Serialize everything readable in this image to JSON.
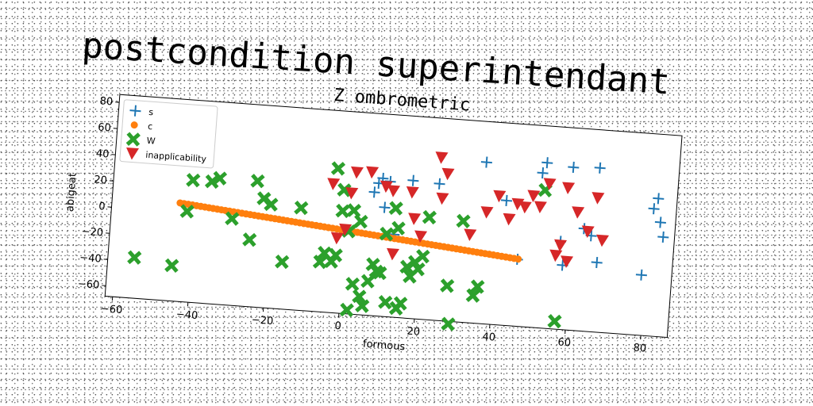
{
  "page": {
    "title": "postcondition superintendant"
  },
  "chart_data": {
    "type": "scatter",
    "title": "Z ombrometric",
    "xlabel": "formous",
    "ylabel": "abigeat",
    "xlim": [
      -62,
      87
    ],
    "ylim": [
      -68,
      86
    ],
    "xticks": [
      -60,
      -40,
      -20,
      0,
      20,
      40,
      60,
      80
    ],
    "yticks": [
      -60,
      -40,
      -20,
      0,
      20,
      40,
      60,
      80
    ],
    "legend_position": "top-left",
    "grid": false,
    "series": [
      {
        "name": "s",
        "marker": "plus",
        "color": "#1f77b4",
        "points": [
          [
            7,
            26
          ],
          [
            8,
            33
          ],
          [
            9,
            37
          ],
          [
            11,
            35
          ],
          [
            10,
            15
          ],
          [
            13,
            -5
          ],
          [
            17,
            37
          ],
          [
            24,
            36
          ],
          [
            36,
            55
          ],
          [
            42,
            27
          ],
          [
            46,
            -17
          ],
          [
            51,
            50
          ],
          [
            52,
            58
          ],
          [
            57,
            -1
          ],
          [
            58,
            -19
          ],
          [
            59,
            56
          ],
          [
            63,
            10
          ],
          [
            66,
            57
          ],
          [
            67,
            -15
          ],
          [
            79,
            -22
          ],
          [
            81,
            29
          ],
          [
            82,
            37
          ],
          [
            83,
            19
          ],
          [
            84,
            8
          ],
          [
            65,
            5
          ]
        ]
      },
      {
        "name": "c",
        "marker": "circle",
        "color": "#ff7f0e",
        "points": [
          [
            -44,
            7
          ],
          [
            -35,
            5
          ],
          [
            -25,
            3
          ],
          [
            -15,
            1
          ],
          [
            -5,
            -1
          ],
          [
            5,
            -4
          ],
          [
            15,
            -7
          ],
          [
            25,
            -10
          ],
          [
            35,
            -13
          ],
          [
            47,
            -17
          ]
        ]
      },
      {
        "name": "W",
        "marker": "x",
        "color": "#2ca02c",
        "points": [
          [
            -55,
            -37
          ],
          [
            -45,
            -41
          ],
          [
            -42,
            1
          ],
          [
            -41,
            25
          ],
          [
            -36,
            25
          ],
          [
            -34,
            28
          ],
          [
            -30,
            -2
          ],
          [
            -25,
            -17
          ],
          [
            -24,
            28
          ],
          [
            -22,
            15
          ],
          [
            -20,
            11
          ],
          [
            -16,
            -32
          ],
          [
            -12,
            10
          ],
          [
            -6,
            -30
          ],
          [
            -5,
            -23
          ],
          [
            -3,
            -29
          ],
          [
            -3,
            42
          ],
          [
            -2,
            -24
          ],
          [
            -1,
            26
          ],
          [
            -1,
            10
          ],
          [
            1,
            -5
          ],
          [
            2,
            11
          ],
          [
            2,
            -65
          ],
          [
            3,
            -45
          ],
          [
            4,
            3
          ],
          [
            5,
            -54
          ],
          [
            6,
            -61
          ],
          [
            7,
            -42
          ],
          [
            8,
            -29
          ],
          [
            9,
            -34
          ],
          [
            10,
            -35
          ],
          [
            11,
            -5
          ],
          [
            12,
            -57
          ],
          [
            13,
            15
          ],
          [
            14,
            0
          ],
          [
            15,
            -61
          ],
          [
            16,
            -57
          ],
          [
            17,
            -29
          ],
          [
            18,
            -36
          ],
          [
            19,
            -25
          ],
          [
            20,
            -30
          ],
          [
            21,
            -20
          ],
          [
            22,
            10
          ],
          [
            28,
            -41
          ],
          [
            29,
            -70
          ],
          [
            31,
            9
          ],
          [
            35,
            -47
          ],
          [
            36,
            -40
          ],
          [
            52,
            37
          ],
          [
            57,
            -62
          ]
        ]
      },
      {
        "name": "inapplicability",
        "marker": "triangle-down",
        "color": "#d62728",
        "points": [
          [
            -4,
            30
          ],
          [
            -2,
            -11
          ],
          [
            0,
            -4
          ],
          [
            1,
            24
          ],
          [
            2,
            40
          ],
          [
            6,
            41
          ],
          [
            10,
            31
          ],
          [
            12,
            28
          ],
          [
            13,
            -20
          ],
          [
            17,
            28
          ],
          [
            18,
            8
          ],
          [
            20,
            -5
          ],
          [
            24,
            56
          ],
          [
            25,
            25
          ],
          [
            26,
            44
          ],
          [
            33,
            -1
          ],
          [
            37,
            17
          ],
          [
            40,
            30
          ],
          [
            43,
            13
          ],
          [
            45,
            25
          ],
          [
            47,
            23
          ],
          [
            49,
            32
          ],
          [
            51,
            24
          ],
          [
            53,
            42
          ],
          [
            56,
            -12
          ],
          [
            57,
            -4
          ],
          [
            58,
            40
          ],
          [
            59,
            -16
          ],
          [
            61,
            22
          ],
          [
            64,
            8
          ],
          [
            66,
            34
          ],
          [
            68,
            2
          ]
        ]
      }
    ]
  }
}
